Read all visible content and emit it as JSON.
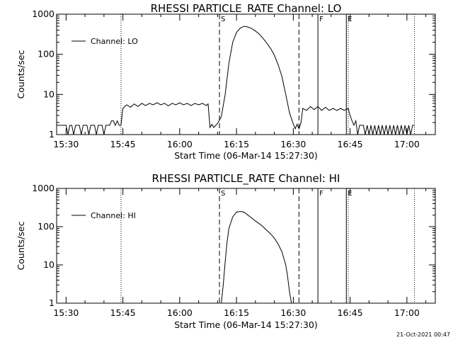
{
  "footer": {
    "stamp": "21-Oct-2021 00:47"
  },
  "chart_data": [
    {
      "type": "line",
      "title": "RHESSI PARTICLE_RATE Channel: LO",
      "xlabel": "Start Time (06-Mar-14 15:27:30)",
      "ylabel": "Counts/sec",
      "yscale": "log",
      "xlim": [
        "15:27:30",
        "17:07:30"
      ],
      "ylim": [
        1,
        1000
      ],
      "x_ticks": [
        "15:30",
        "15:45",
        "16:00",
        "16:15",
        "16:30",
        "16:45",
        "17:00"
      ],
      "y_ticks": [
        "1",
        "10",
        "100",
        "1000"
      ],
      "legend": {
        "placement": "top-left",
        "entries": [
          "Channel: LO"
        ]
      },
      "markers": [
        {
          "label": "",
          "time": "15:44:30",
          "style": "dotted"
        },
        {
          "label": "S",
          "time": "16:10:30",
          "style": "dashed"
        },
        {
          "label": "",
          "time": "16:31:30",
          "style": "dashed"
        },
        {
          "label": "F",
          "time": "16:36:30",
          "style": "solid"
        },
        {
          "label": "E",
          "time": "16:44:00",
          "style": "solid"
        },
        {
          "label": "",
          "time": "16:44:30",
          "style": "dotted"
        },
        {
          "label": "",
          "time": "17:02:00",
          "style": "dotted"
        }
      ],
      "series": [
        {
          "name": "Channel: LO",
          "points": [
            [
              "15:27:30",
              1.7
            ],
            [
              "15:28:30",
              1.7
            ],
            [
              "15:29:30",
              1.7
            ],
            [
              "15:30:00",
              1.7
            ],
            [
              "15:30:30",
              1.0
            ],
            [
              "15:31:00",
              1.7
            ],
            [
              "15:31:30",
              1.7
            ],
            [
              "15:32:00",
              1.0
            ],
            [
              "15:32:30",
              1.7
            ],
            [
              "15:33:30",
              1.7
            ],
            [
              "15:34:00",
              1.0
            ],
            [
              "15:34:30",
              1.7
            ],
            [
              "15:35:30",
              1.7
            ],
            [
              "15:36:00",
              1.0
            ],
            [
              "15:36:30",
              1.7
            ],
            [
              "15:37:30",
              1.7
            ],
            [
              "15:38:00",
              1.0
            ],
            [
              "15:38:30",
              1.7
            ],
            [
              "15:39:30",
              1.7
            ],
            [
              "15:40:00",
              1.0
            ],
            [
              "15:40:30",
              1.7
            ],
            [
              "15:41:30",
              1.7
            ],
            [
              "15:42:00",
              2.2
            ],
            [
              "15:42:30",
              2.2
            ],
            [
              "15:43:00",
              1.7
            ],
            [
              "15:43:30",
              2.2
            ],
            [
              "15:44:00",
              1.7
            ],
            [
              "15:44:30",
              1.7
            ],
            [
              "15:45:00",
              4.5
            ],
            [
              "15:46:00",
              5.5
            ],
            [
              "15:47:00",
              4.8
            ],
            [
              "15:48:00",
              5.8
            ],
            [
              "15:49:00",
              5.0
            ],
            [
              "15:50:00",
              6.0
            ],
            [
              "15:51:00",
              5.3
            ],
            [
              "15:52:00",
              6.0
            ],
            [
              "15:53:00",
              5.5
            ],
            [
              "15:54:00",
              6.2
            ],
            [
              "15:55:00",
              5.5
            ],
            [
              "15:56:00",
              6.0
            ],
            [
              "15:57:00",
              5.2
            ],
            [
              "15:58:00",
              6.0
            ],
            [
              "15:59:00",
              5.5
            ],
            [
              "16:00:00",
              6.2
            ],
            [
              "16:01:00",
              5.5
            ],
            [
              "16:02:00",
              6.0
            ],
            [
              "16:03:00",
              5.3
            ],
            [
              "16:04:00",
              6.0
            ],
            [
              "16:05:00",
              5.5
            ],
            [
              "16:06:00",
              6.0
            ],
            [
              "16:07:00",
              5.3
            ],
            [
              "16:07:30",
              5.8
            ],
            [
              "16:08:00",
              1.5
            ],
            [
              "16:08:30",
              1.8
            ],
            [
              "16:09:00",
              1.5
            ],
            [
              "16:10:00",
              1.9
            ],
            [
              "16:11:00",
              2.8
            ],
            [
              "16:12:00",
              10
            ],
            [
              "16:13:00",
              60
            ],
            [
              "16:14:00",
              200
            ],
            [
              "16:15:00",
              350
            ],
            [
              "16:16:00",
              450
            ],
            [
              "16:17:00",
              500
            ],
            [
              "16:18:00",
              480
            ],
            [
              "16:19:00",
              440
            ],
            [
              "16:20:00",
              380
            ],
            [
              "16:21:00",
              320
            ],
            [
              "16:22:00",
              250
            ],
            [
              "16:23:00",
              190
            ],
            [
              "16:24:00",
              140
            ],
            [
              "16:25:00",
              95
            ],
            [
              "16:26:00",
              55
            ],
            [
              "16:27:00",
              28
            ],
            [
              "16:28:00",
              10
            ],
            [
              "16:29:00",
              3.5
            ],
            [
              "16:30:00",
              1.8
            ],
            [
              "16:30:30",
              1.4
            ],
            [
              "16:31:00",
              1.8
            ],
            [
              "16:31:30",
              1.4
            ],
            [
              "16:32:00",
              1.9
            ],
            [
              "16:32:30",
              4.5
            ],
            [
              "16:33:30",
              4.0
            ],
            [
              "16:34:30",
              5.0
            ],
            [
              "16:35:30",
              4.2
            ],
            [
              "16:36:30",
              5.0
            ],
            [
              "16:37:30",
              4.0
            ],
            [
              "16:38:30",
              4.8
            ],
            [
              "16:39:30",
              4.0
            ],
            [
              "16:40:30",
              4.5
            ],
            [
              "16:41:30",
              4.0
            ],
            [
              "16:42:30",
              4.5
            ],
            [
              "16:43:30",
              4.0
            ],
            [
              "16:44:30",
              4.5
            ],
            [
              "16:45:00",
              3.0
            ],
            [
              "16:45:30",
              2.2
            ],
            [
              "16:46:00",
              1.7
            ],
            [
              "16:46:30",
              2.2
            ],
            [
              "16:47:00",
              1.0
            ],
            [
              "16:47:30",
              1.7
            ],
            [
              "16:48:30",
              1.7
            ],
            [
              "16:49:00",
              1.0
            ],
            [
              "16:49:30",
              1.7
            ],
            [
              "16:50:00",
              1.0
            ],
            [
              "16:50:30",
              1.7
            ],
            [
              "16:51:00",
              1.0
            ],
            [
              "16:51:30",
              1.7
            ],
            [
              "16:52:00",
              1.0
            ],
            [
              "16:52:30",
              1.7
            ],
            [
              "16:53:00",
              1.0
            ],
            [
              "16:53:30",
              1.7
            ],
            [
              "16:54:00",
              1.0
            ],
            [
              "16:54:30",
              1.7
            ],
            [
              "16:55:00",
              1.0
            ],
            [
              "16:55:30",
              1.7
            ],
            [
              "16:56:00",
              1.0
            ],
            [
              "16:56:30",
              1.7
            ],
            [
              "16:57:00",
              1.0
            ],
            [
              "16:57:30",
              1.7
            ],
            [
              "16:58:00",
              1.0
            ],
            [
              "16:58:30",
              1.7
            ],
            [
              "16:59:00",
              1.0
            ],
            [
              "16:59:30",
              1.7
            ],
            [
              "17:00:00",
              1.0
            ],
            [
              "17:00:30",
              1.7
            ],
            [
              "17:01:00",
              1.0
            ],
            [
              "17:01:30",
              1.7
            ],
            [
              "17:02:00",
              1.7
            ]
          ]
        }
      ]
    },
    {
      "type": "line",
      "title": "RHESSI PARTICLE_RATE Channel: HI",
      "xlabel": "Start Time (06-Mar-14 15:27:30)",
      "ylabel": "Counts/sec",
      "yscale": "log",
      "xlim": [
        "15:27:30",
        "17:07:30"
      ],
      "ylim": [
        1,
        1000
      ],
      "x_ticks": [
        "15:30",
        "15:45",
        "16:00",
        "16:15",
        "16:30",
        "16:45",
        "17:00"
      ],
      "y_ticks": [
        "1",
        "10",
        "100",
        "1000"
      ],
      "legend": {
        "placement": "top-left",
        "entries": [
          "Channel: HI"
        ]
      },
      "markers": [
        {
          "label": "",
          "time": "15:44:30",
          "style": "dotted"
        },
        {
          "label": "S",
          "time": "16:10:30",
          "style": "dashed"
        },
        {
          "label": "",
          "time": "16:31:30",
          "style": "dashed"
        },
        {
          "label": "F",
          "time": "16:36:30",
          "style": "solid"
        },
        {
          "label": "E",
          "time": "16:44:00",
          "style": "solid"
        },
        {
          "label": "",
          "time": "16:44:30",
          "style": "dotted"
        },
        {
          "label": "",
          "time": "17:02:00",
          "style": "dotted"
        }
      ],
      "series": [
        {
          "name": "Channel: HI",
          "points": [
            [
              "16:11:00",
              1.0
            ],
            [
              "16:11:30",
              3
            ],
            [
              "16:12:00",
              12
            ],
            [
              "16:12:30",
              40
            ],
            [
              "16:13:00",
              90
            ],
            [
              "16:14:00",
              180
            ],
            [
              "16:15:00",
              240
            ],
            [
              "16:16:00",
              250
            ],
            [
              "16:17:00",
              240
            ],
            [
              "16:18:00",
              200
            ],
            [
              "16:19:00",
              170
            ],
            [
              "16:20:00",
              140
            ],
            [
              "16:21:00",
              120
            ],
            [
              "16:22:00",
              100
            ],
            [
              "16:23:00",
              80
            ],
            [
              "16:24:00",
              65
            ],
            [
              "16:25:00",
              50
            ],
            [
              "16:26:00",
              35
            ],
            [
              "16:27:00",
              22
            ],
            [
              "16:28:00",
              10
            ],
            [
              "16:28:30",
              5
            ],
            [
              "16:29:00",
              2
            ],
            [
              "16:29:30",
              1.0
            ]
          ]
        }
      ]
    }
  ]
}
